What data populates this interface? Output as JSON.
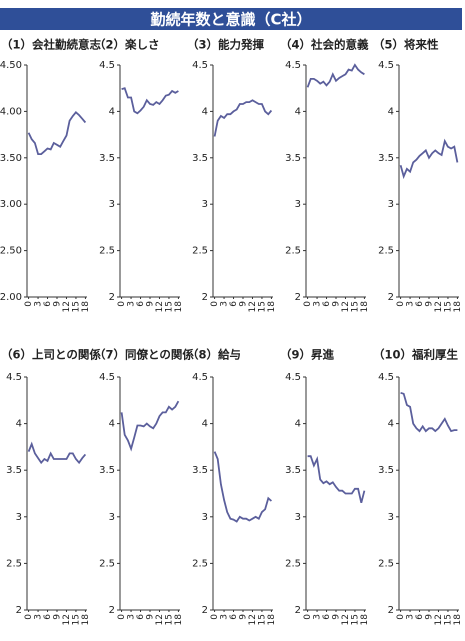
{
  "title": "勤続年数と意識（C社）",
  "chart_data": [
    {
      "type": "line",
      "title": "（1）会社勤続意志",
      "x": [
        0,
        1,
        2,
        3,
        4,
        5,
        6,
        7,
        8,
        9,
        10,
        11,
        12,
        13,
        14,
        15,
        16,
        17,
        18
      ],
      "xlim": [
        -0.5,
        18.5
      ],
      "xticks": [
        0,
        3,
        6,
        9,
        12,
        15,
        18
      ],
      "ylim": [
        2,
        4.5
      ],
      "yticks": [
        {
          "value": 4.5,
          "label": "4.50"
        },
        {
          "value": 4,
          "label": "4.00"
        },
        {
          "value": 3.5,
          "label": "3.50"
        },
        {
          "value": 3,
          "label": "3.00"
        },
        {
          "value": 2.5,
          "label": "2.50"
        },
        {
          "value": 2,
          "label": "2.00"
        }
      ],
      "series": [
        {
          "color": "#5b5f9c",
          "values": [
            3.77,
            3.7,
            3.66,
            3.54,
            3.54,
            3.57,
            3.6,
            3.59,
            3.66,
            3.64,
            3.62,
            3.68,
            3.74,
            3.9,
            3.95,
            3.99,
            3.96,
            3.92,
            3.88
          ]
        }
      ]
    },
    {
      "type": "line",
      "title": "（2）楽しさ",
      "x": [
        0,
        1,
        2,
        3,
        4,
        5,
        6,
        7,
        8,
        9,
        10,
        11,
        12,
        13,
        14,
        15,
        16,
        17,
        18
      ],
      "xlim": [
        -0.5,
        18.5
      ],
      "xticks": [
        0,
        3,
        6,
        9,
        12,
        15,
        18
      ],
      "ylim": [
        2,
        4.5
      ],
      "yticks": [
        4.5,
        4,
        3.5,
        3,
        2.5,
        2
      ],
      "series": [
        {
          "color": "#5b5f9c",
          "values": [
            4.24,
            4.25,
            4.15,
            4.15,
            4.0,
            3.98,
            4.01,
            4.05,
            4.12,
            4.08,
            4.07,
            4.1,
            4.08,
            4.12,
            4.17,
            4.18,
            4.22,
            4.2,
            4.22
          ]
        }
      ]
    },
    {
      "type": "line",
      "title": "（3）能力発揮",
      "x": [
        0,
        1,
        2,
        3,
        4,
        5,
        6,
        7,
        8,
        9,
        10,
        11,
        12,
        13,
        14,
        15,
        16,
        17,
        18
      ],
      "xlim": [
        -0.5,
        18.5
      ],
      "xticks": [
        0,
        3,
        6,
        9,
        12,
        15,
        18
      ],
      "ylim": [
        2,
        4.5
      ],
      "yticks": [
        4.5,
        4,
        3.5,
        3,
        2.5,
        2
      ],
      "series": [
        {
          "color": "#5b5f9c",
          "values": [
            3.73,
            3.9,
            3.95,
            3.93,
            3.97,
            3.97,
            4.0,
            4.02,
            4.08,
            4.08,
            4.1,
            4.1,
            4.12,
            4.1,
            4.08,
            4.08,
            4.0,
            3.97,
            4.01
          ]
        }
      ]
    },
    {
      "type": "line",
      "title": "（4）社会的意義",
      "x": [
        0,
        1,
        2,
        3,
        4,
        5,
        6,
        7,
        8,
        9,
        10,
        11,
        12,
        13,
        14,
        15,
        16,
        17,
        18
      ],
      "xlim": [
        -0.5,
        18.5
      ],
      "xticks": [
        0,
        3,
        6,
        9,
        12,
        15,
        18
      ],
      "ylim": [
        2,
        4.5
      ],
      "yticks": [
        4.5,
        4,
        3.5,
        3,
        2.5,
        2
      ],
      "series": [
        {
          "color": "#5b5f9c",
          "values": [
            4.26,
            4.35,
            4.35,
            4.33,
            4.3,
            4.32,
            4.28,
            4.32,
            4.4,
            4.33,
            4.36,
            4.38,
            4.4,
            4.45,
            4.44,
            4.5,
            4.45,
            4.42,
            4.4
          ]
        }
      ]
    },
    {
      "type": "line",
      "title": "（5）将来性",
      "x": [
        0,
        1,
        2,
        3,
        4,
        5,
        6,
        7,
        8,
        9,
        10,
        11,
        12,
        13,
        14,
        15,
        16,
        17,
        18
      ],
      "xlim": [
        -0.5,
        18.5
      ],
      "xticks": [
        0,
        3,
        6,
        9,
        12,
        15,
        18
      ],
      "ylim": [
        2,
        4.5
      ],
      "yticks": [
        4.5,
        4,
        3.5,
        3,
        2.5,
        2
      ],
      "series": [
        {
          "color": "#5b5f9c",
          "values": [
            3.42,
            3.3,
            3.38,
            3.35,
            3.45,
            3.48,
            3.52,
            3.55,
            3.58,
            3.5,
            3.55,
            3.58,
            3.55,
            3.53,
            3.68,
            3.62,
            3.6,
            3.62,
            3.45
          ]
        }
      ]
    },
    {
      "type": "line",
      "title": "（6）上司との関係",
      "x": [
        0,
        1,
        2,
        3,
        4,
        5,
        6,
        7,
        8,
        9,
        10,
        11,
        12,
        13,
        14,
        15,
        16,
        17,
        18
      ],
      "xlim": [
        -0.5,
        18.5
      ],
      "xticks": [
        0,
        3,
        6,
        9,
        12,
        15,
        18
      ],
      "ylim": [
        2,
        4.5
      ],
      "yticks": [
        4.5,
        4,
        3.5,
        3,
        2.5,
        2
      ],
      "series": [
        {
          "color": "#5b5f9c",
          "values": [
            3.7,
            3.78,
            3.68,
            3.63,
            3.58,
            3.62,
            3.6,
            3.68,
            3.62,
            3.62,
            3.62,
            3.62,
            3.62,
            3.68,
            3.68,
            3.62,
            3.58,
            3.63,
            3.67
          ]
        }
      ]
    },
    {
      "type": "line",
      "title": "（7）同僚との関係",
      "x": [
        0,
        1,
        2,
        3,
        4,
        5,
        6,
        7,
        8,
        9,
        10,
        11,
        12,
        13,
        14,
        15,
        16,
        17,
        18
      ],
      "xlim": [
        -0.5,
        18.5
      ],
      "xticks": [
        0,
        3,
        6,
        9,
        12,
        15,
        18
      ],
      "ylim": [
        2,
        4.5
      ],
      "yticks": [
        4.5,
        4,
        3.5,
        3,
        2.5,
        2
      ],
      "series": [
        {
          "color": "#5b5f9c",
          "values": [
            4.12,
            3.88,
            3.82,
            3.73,
            3.85,
            3.98,
            3.98,
            3.97,
            4.0,
            3.97,
            3.95,
            4.0,
            4.08,
            4.12,
            4.12,
            4.18,
            4.15,
            4.18,
            4.24
          ]
        }
      ]
    },
    {
      "type": "line",
      "title": "（8）給与",
      "x": [
        0,
        1,
        2,
        3,
        4,
        5,
        6,
        7,
        8,
        9,
        10,
        11,
        12,
        13,
        14,
        15,
        16,
        17,
        18
      ],
      "xlim": [
        -0.5,
        18.5
      ],
      "xticks": [
        0,
        3,
        6,
        9,
        12,
        15,
        18
      ],
      "ylim": [
        2,
        4.5
      ],
      "yticks": [
        4.5,
        4,
        3.5,
        3,
        2.5,
        2
      ],
      "series": [
        {
          "color": "#5b5f9c",
          "values": [
            3.7,
            3.62,
            3.35,
            3.18,
            3.05,
            2.98,
            2.97,
            2.95,
            3.0,
            2.98,
            2.98,
            2.96,
            2.98,
            3.0,
            2.98,
            3.05,
            3.08,
            3.2,
            3.17
          ]
        }
      ]
    },
    {
      "type": "line",
      "title": "（9）昇進",
      "x": [
        0,
        1,
        2,
        3,
        4,
        5,
        6,
        7,
        8,
        9,
        10,
        11,
        12,
        13,
        14,
        15,
        16,
        17,
        18
      ],
      "xlim": [
        -0.5,
        18.5
      ],
      "xticks": [
        0,
        3,
        6,
        9,
        12,
        15,
        18
      ],
      "ylim": [
        2,
        4.5
      ],
      "yticks": [
        4.5,
        4,
        3.5,
        3,
        2.5,
        2
      ],
      "series": [
        {
          "color": "#5b5f9c",
          "values": [
            3.65,
            3.65,
            3.55,
            3.62,
            3.4,
            3.36,
            3.38,
            3.35,
            3.37,
            3.32,
            3.28,
            3.28,
            3.25,
            3.25,
            3.25,
            3.3,
            3.3,
            3.15,
            3.28
          ]
        }
      ]
    },
    {
      "type": "line",
      "title": "（10）福利厚生",
      "x": [
        0,
        1,
        2,
        3,
        4,
        5,
        6,
        7,
        8,
        9,
        10,
        11,
        12,
        13,
        14,
        15,
        16,
        17,
        18
      ],
      "xlim": [
        -0.5,
        18.5
      ],
      "xticks": [
        0,
        3,
        6,
        9,
        12,
        15,
        18
      ],
      "ylim": [
        2,
        4.5
      ],
      "yticks": [
        4.5,
        4,
        3.5,
        3,
        2.5,
        2
      ],
      "series": [
        {
          "color": "#5b5f9c",
          "values": [
            4.33,
            4.32,
            4.2,
            4.18,
            4.0,
            3.95,
            3.92,
            3.97,
            3.92,
            3.95,
            3.95,
            3.92,
            3.95,
            4.0,
            4.05,
            3.98,
            3.92,
            3.93,
            3.93
          ]
        }
      ]
    }
  ]
}
